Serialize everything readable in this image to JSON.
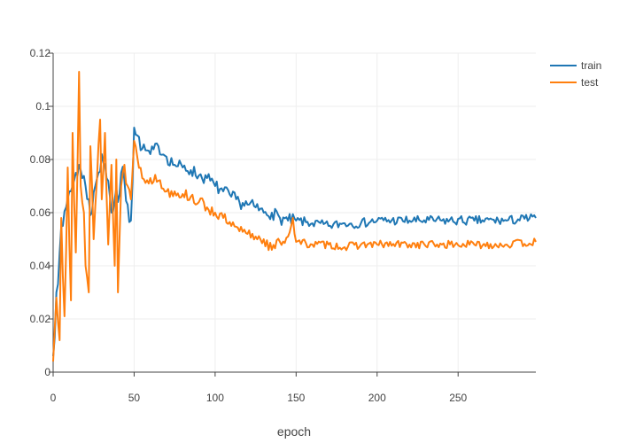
{
  "chart_data": {
    "type": "line",
    "title": "",
    "xlabel": "epoch",
    "ylabel": "",
    "xlim": [
      0,
      298
    ],
    "ylim": [
      0,
      0.12
    ],
    "x_ticks": [
      0,
      50,
      100,
      150,
      200,
      250
    ],
    "x_tick_labels": [
      "0",
      "50",
      "100",
      "150",
      "200",
      "250"
    ],
    "y_ticks": [
      0,
      0.02,
      0.04,
      0.06,
      0.08,
      0.1,
      0.12
    ],
    "y_tick_labels": [
      "0",
      "0.02",
      "0.04",
      "0.06",
      "0.08",
      "0.1",
      "0.12"
    ],
    "grid": true,
    "legend_position": "top-right",
    "series": [
      {
        "name": "train",
        "color": "#1f77b4",
        "keypoints": [
          [
            0,
            0.006
          ],
          [
            2,
            0.03
          ],
          [
            4,
            0.045
          ],
          [
            6,
            0.055
          ],
          [
            8,
            0.062
          ],
          [
            10,
            0.068
          ],
          [
            12,
            0.07
          ],
          [
            14,
            0.075
          ],
          [
            16,
            0.078
          ],
          [
            18,
            0.073
          ],
          [
            20,
            0.07
          ],
          [
            22,
            0.065
          ],
          [
            24,
            0.06
          ],
          [
            26,
            0.07
          ],
          [
            28,
            0.075
          ],
          [
            30,
            0.082
          ],
          [
            32,
            0.078
          ],
          [
            34,
            0.072
          ],
          [
            36,
            0.06
          ],
          [
            38,
            0.065
          ],
          [
            40,
            0.064
          ],
          [
            42,
            0.075
          ],
          [
            44,
            0.072
          ],
          [
            46,
            0.063
          ],
          [
            48,
            0.057
          ],
          [
            50,
            0.092
          ],
          [
            55,
            0.084
          ],
          [
            60,
            0.082
          ],
          [
            65,
            0.085
          ],
          [
            70,
            0.081
          ],
          [
            75,
            0.078
          ],
          [
            80,
            0.077
          ],
          [
            85,
            0.076
          ],
          [
            90,
            0.074
          ],
          [
            95,
            0.073
          ],
          [
            100,
            0.07
          ],
          [
            105,
            0.068
          ],
          [
            110,
            0.066
          ],
          [
            115,
            0.064
          ],
          [
            120,
            0.063
          ],
          [
            125,
            0.062
          ],
          [
            130,
            0.06
          ],
          [
            135,
            0.06
          ],
          [
            140,
            0.058
          ],
          [
            145,
            0.057
          ],
          [
            150,
            0.057
          ],
          [
            160,
            0.056
          ],
          [
            170,
            0.055
          ],
          [
            180,
            0.056
          ],
          [
            190,
            0.056
          ],
          [
            200,
            0.057
          ],
          [
            220,
            0.057
          ],
          [
            240,
            0.057
          ],
          [
            260,
            0.057
          ],
          [
            280,
            0.057
          ],
          [
            298,
            0.058
          ]
        ],
        "noise": [
          0.005,
          0.0025,
          0.0018
        ],
        "seed": 7
      },
      {
        "name": "test",
        "color": "#ff7f0e",
        "keypoints": [
          [
            0,
            0.004
          ],
          [
            2,
            0.028
          ],
          [
            4,
            0.012
          ],
          [
            5,
            0.058
          ],
          [
            7,
            0.021
          ],
          [
            9,
            0.077
          ],
          [
            11,
            0.027
          ],
          [
            12,
            0.09
          ],
          [
            14,
            0.045
          ],
          [
            16,
            0.113
          ],
          [
            17,
            0.07
          ],
          [
            19,
            0.06
          ],
          [
            20,
            0.04
          ],
          [
            22,
            0.03
          ],
          [
            23,
            0.085
          ],
          [
            25,
            0.05
          ],
          [
            27,
            0.072
          ],
          [
            29,
            0.095
          ],
          [
            30,
            0.065
          ],
          [
            32,
            0.09
          ],
          [
            34,
            0.048
          ],
          [
            36,
            0.078
          ],
          [
            38,
            0.04
          ],
          [
            39,
            0.08
          ],
          [
            40,
            0.03
          ],
          [
            42,
            0.07
          ],
          [
            44,
            0.078
          ],
          [
            46,
            0.07
          ],
          [
            48,
            0.065
          ],
          [
            50,
            0.087
          ],
          [
            55,
            0.073
          ],
          [
            60,
            0.073
          ],
          [
            65,
            0.072
          ],
          [
            70,
            0.068
          ],
          [
            75,
            0.068
          ],
          [
            80,
            0.067
          ],
          [
            85,
            0.066
          ],
          [
            90,
            0.064
          ],
          [
            95,
            0.062
          ],
          [
            100,
            0.06
          ],
          [
            105,
            0.058
          ],
          [
            110,
            0.055
          ],
          [
            115,
            0.053
          ],
          [
            120,
            0.052
          ],
          [
            125,
            0.051
          ],
          [
            130,
            0.05
          ],
          [
            135,
            0.046
          ],
          [
            140,
            0.049
          ],
          [
            145,
            0.051
          ],
          [
            148,
            0.058
          ],
          [
            150,
            0.049
          ],
          [
            160,
            0.048
          ],
          [
            170,
            0.048
          ],
          [
            180,
            0.047
          ],
          [
            190,
            0.048
          ],
          [
            200,
            0.048
          ],
          [
            220,
            0.048
          ],
          [
            240,
            0.048
          ],
          [
            260,
            0.048
          ],
          [
            280,
            0.048
          ],
          [
            298,
            0.049
          ]
        ],
        "noise": [
          0.004,
          0.0022,
          0.0015
        ],
        "seed": 13
      }
    ]
  }
}
